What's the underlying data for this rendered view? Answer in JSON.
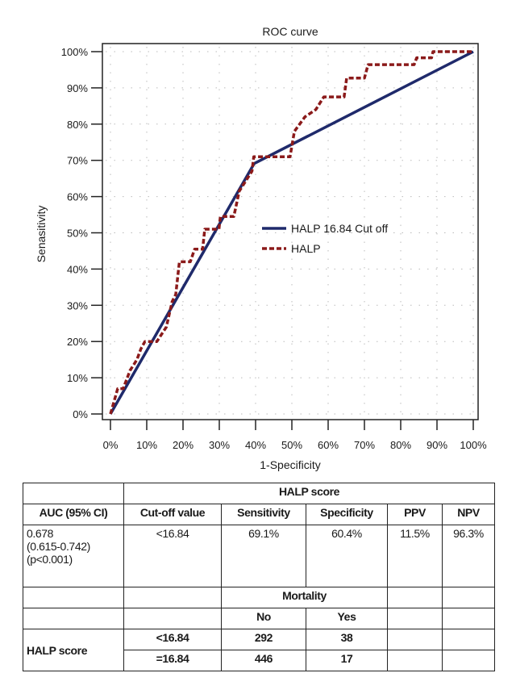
{
  "chart_data": {
    "type": "line",
    "title": "ROC curve",
    "xlabel": "1-Specificity",
    "ylabel": "Senasitivity",
    "xlim": [
      0,
      100
    ],
    "ylim": [
      0,
      100
    ],
    "grid": true,
    "legend_placement": "center-right",
    "x_ticks": [
      "0%",
      "10%",
      "20%",
      "30%",
      "40%",
      "50%",
      "60%",
      "70%",
      "80%",
      "90%",
      "100%"
    ],
    "y_ticks": [
      "0%",
      "10%",
      "20%",
      "30%",
      "40%",
      "50%",
      "60%",
      "70%",
      "80%",
      "90%",
      "100%"
    ],
    "series": [
      {
        "name": "HALP 16.84 Cut off",
        "color": "#1f2a6b",
        "style": "solid",
        "x": [
          0,
          39.6,
          100
        ],
        "y": [
          0,
          69.1,
          100
        ]
      },
      {
        "name": "HALP",
        "color": "#8b1a1a",
        "style": "dashed",
        "x": [
          0,
          2,
          3.5,
          5.4,
          7.3,
          8.4,
          9.5,
          12.8,
          15.4,
          17,
          18,
          19,
          22,
          23.2,
          25.4,
          26,
          29.9,
          30.3,
          34,
          35.5,
          39,
          39.5,
          49.5,
          50.7,
          53.6,
          56.6,
          58.8,
          64.4,
          65.1,
          70,
          71,
          83.7,
          84.4,
          88.5,
          88.9,
          100
        ],
        "y": [
          0,
          7,
          7,
          12,
          15,
          18,
          20,
          20,
          24,
          31,
          33,
          42,
          42,
          45.5,
          45.5,
          51,
          51,
          54.5,
          54.5,
          61.5,
          67,
          71,
          71,
          78,
          82,
          84,
          87.5,
          87.5,
          92.7,
          92.7,
          96.4,
          96.4,
          98.3,
          98.3,
          100,
          100
        ]
      }
    ]
  },
  "table": {
    "group_header": "HALP score",
    "headers": [
      "AUC (95% CI)",
      "Cut-off value",
      "Sensitivity",
      "Specificity",
      "PPV",
      "NPV"
    ],
    "auc_lines": [
      "0.678",
      "(0.615-0.742)",
      "(p<0.001)"
    ],
    "values": [
      "<16.84",
      "69.1%",
      "60.4%",
      "11.5%",
      "96.3%"
    ],
    "mortality_header": "Mortality",
    "mortality_cols": [
      "No",
      "Yes"
    ],
    "row_label": "HALP score",
    "rows": [
      {
        "cutoff": "<16.84",
        "no": "292",
        "yes": "38"
      },
      {
        "cutoff": "=16.84",
        "no": "446",
        "yes": "17"
      }
    ]
  }
}
